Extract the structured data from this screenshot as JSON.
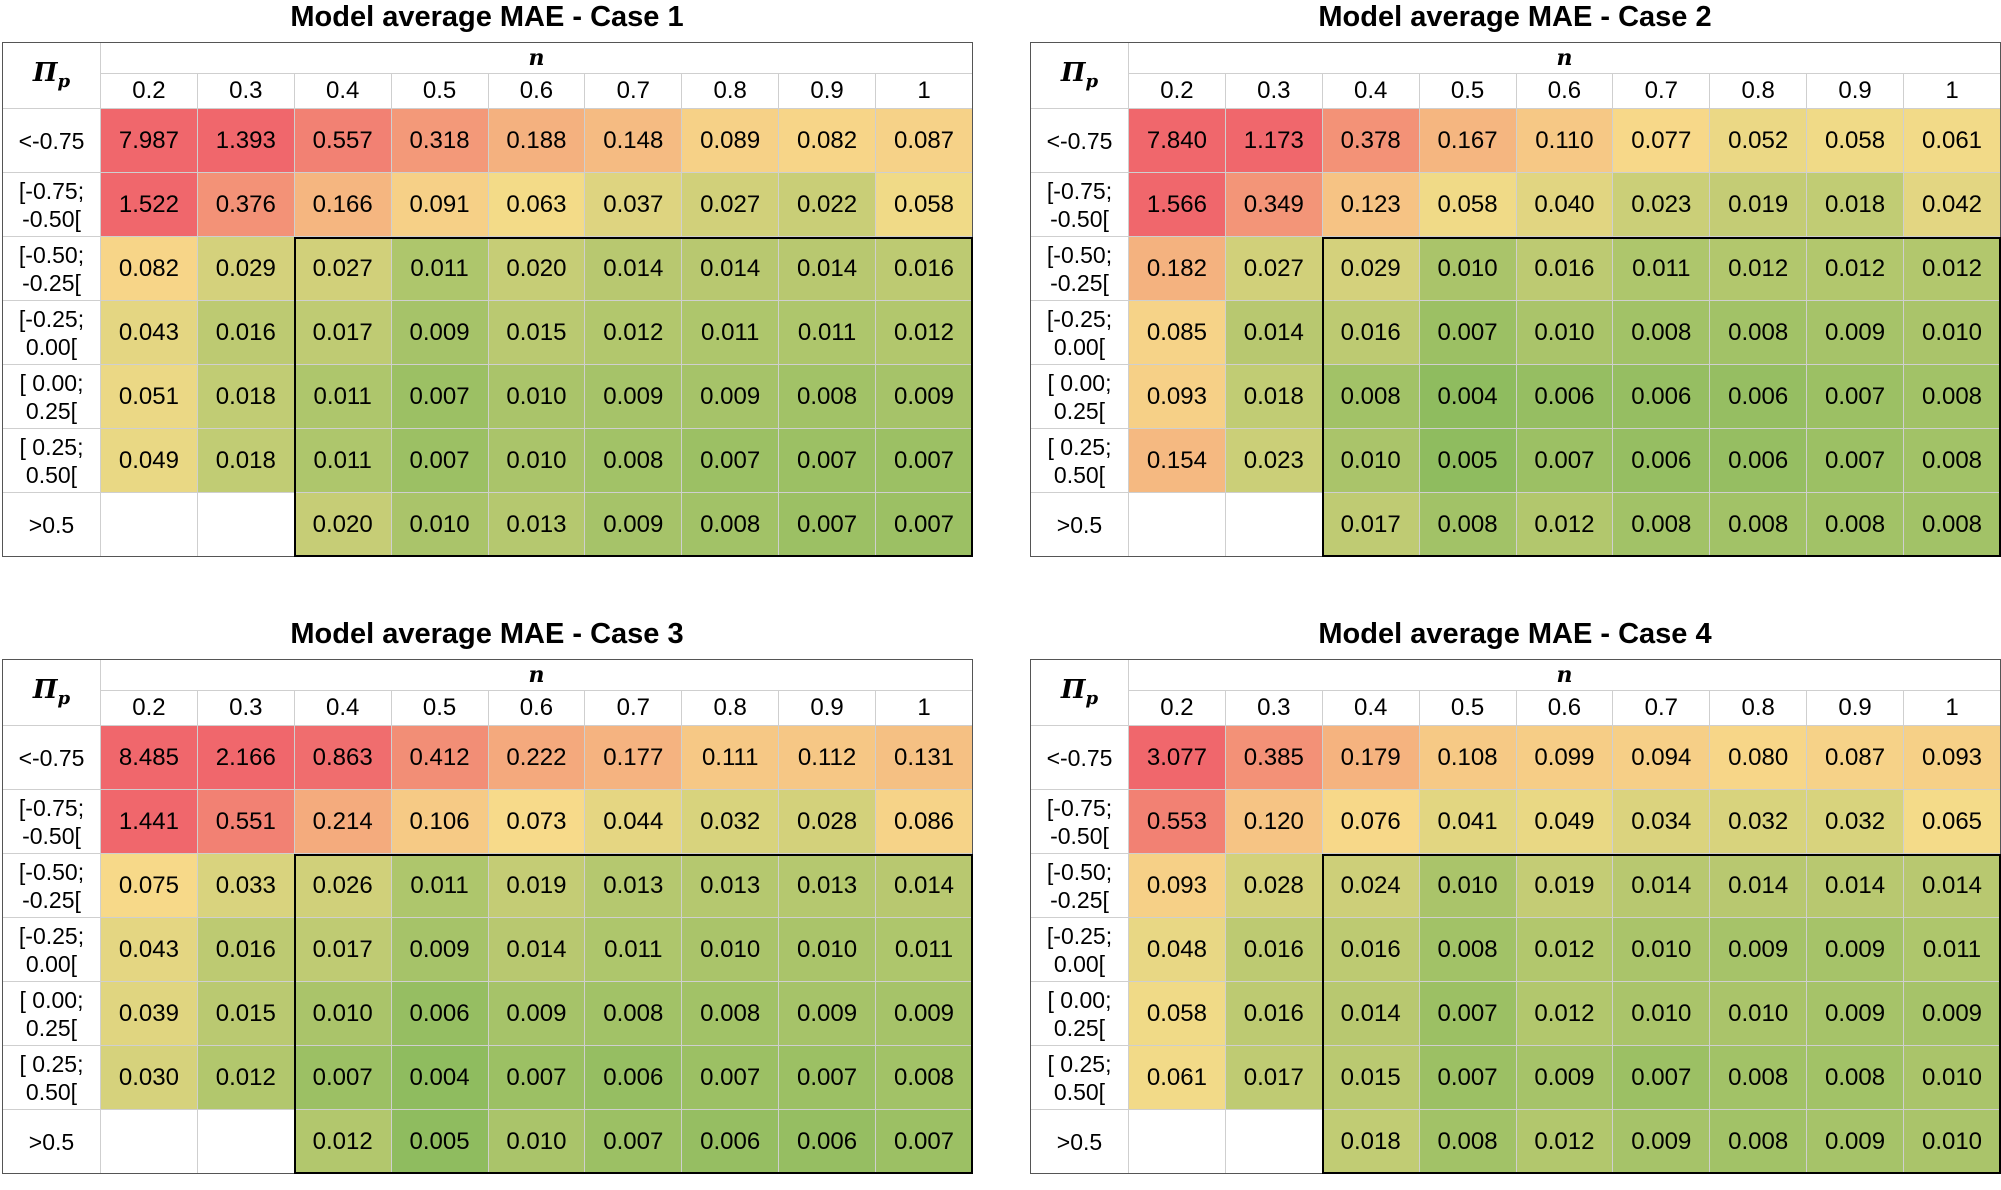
{
  "chart_data": [
    {
      "type": "heatmap",
      "title": "Model average MAE - Case 1",
      "row_header": "Πp",
      "col_header": "n",
      "columns": [
        "0.2",
        "0.3",
        "0.4",
        "0.5",
        "0.6",
        "0.7",
        "0.8",
        "0.9",
        "1"
      ],
      "rows": [
        "<-0.75",
        "[-0.75;\n-0.50[",
        "[-0.50;\n-0.25[",
        "[-0.25;\n0.00[",
        "[ 0.00;\n0.25[",
        "[ 0.25;\n0.50[",
        ">0.5"
      ],
      "values": [
        [
          "7.987",
          "1.393",
          "0.557",
          "0.318",
          "0.188",
          "0.148",
          "0.089",
          "0.082",
          "0.087"
        ],
        [
          "1.522",
          "0.376",
          "0.166",
          "0.091",
          "0.063",
          "0.037",
          "0.027",
          "0.022",
          "0.058"
        ],
        [
          "0.082",
          "0.029",
          "0.027",
          "0.011",
          "0.020",
          "0.014",
          "0.014",
          "0.014",
          "0.016"
        ],
        [
          "0.043",
          "0.016",
          "0.017",
          "0.009",
          "0.015",
          "0.012",
          "0.011",
          "0.011",
          "0.012"
        ],
        [
          "0.051",
          "0.018",
          "0.011",
          "0.007",
          "0.010",
          "0.009",
          "0.009",
          "0.008",
          "0.009"
        ],
        [
          "0.049",
          "0.018",
          "0.011",
          "0.007",
          "0.010",
          "0.008",
          "0.007",
          "0.007",
          "0.007"
        ],
        [
          null,
          null,
          "0.020",
          "0.010",
          "0.013",
          "0.009",
          "0.008",
          "0.007",
          "0.007"
        ]
      ]
    },
    {
      "type": "heatmap",
      "title": "Model average MAE - Case 2",
      "row_header": "Πp",
      "col_header": "n",
      "columns": [
        "0.2",
        "0.3",
        "0.4",
        "0.5",
        "0.6",
        "0.7",
        "0.8",
        "0.9",
        "1"
      ],
      "rows": [
        "<-0.75",
        "[-0.75;\n-0.50[",
        "[-0.50;\n-0.25[",
        "[-0.25;\n0.00[",
        "[ 0.00;\n0.25[",
        "[ 0.25;\n0.50[",
        ">0.5"
      ],
      "values": [
        [
          "7.840",
          "1.173",
          "0.378",
          "0.167",
          "0.110",
          "0.077",
          "0.052",
          "0.058",
          "0.061"
        ],
        [
          "1.566",
          "0.349",
          "0.123",
          "0.058",
          "0.040",
          "0.023",
          "0.019",
          "0.018",
          "0.042"
        ],
        [
          "0.182",
          "0.027",
          "0.029",
          "0.010",
          "0.016",
          "0.011",
          "0.012",
          "0.012",
          "0.012"
        ],
        [
          "0.085",
          "0.014",
          "0.016",
          "0.007",
          "0.010",
          "0.008",
          "0.008",
          "0.009",
          "0.010"
        ],
        [
          "0.093",
          "0.018",
          "0.008",
          "0.004",
          "0.006",
          "0.006",
          "0.006",
          "0.007",
          "0.008"
        ],
        [
          "0.154",
          "0.023",
          "0.010",
          "0.005",
          "0.007",
          "0.006",
          "0.006",
          "0.007",
          "0.008"
        ],
        [
          null,
          null,
          "0.017",
          "0.008",
          "0.012",
          "0.008",
          "0.008",
          "0.008",
          "0.008"
        ]
      ]
    },
    {
      "type": "heatmap",
      "title": "Model average MAE - Case 3",
      "row_header": "Πp",
      "col_header": "n",
      "columns": [
        "0.2",
        "0.3",
        "0.4",
        "0.5",
        "0.6",
        "0.7",
        "0.8",
        "0.9",
        "1"
      ],
      "rows": [
        "<-0.75",
        "[-0.75;\n-0.50[",
        "[-0.50;\n-0.25[",
        "[-0.25;\n0.00[",
        "[ 0.00;\n0.25[",
        "[ 0.25;\n0.50[",
        ">0.5"
      ],
      "values": [
        [
          "8.485",
          "2.166",
          "0.863",
          "0.412",
          "0.222",
          "0.177",
          "0.111",
          "0.112",
          "0.131"
        ],
        [
          "1.441",
          "0.551",
          "0.214",
          "0.106",
          "0.073",
          "0.044",
          "0.032",
          "0.028",
          "0.086"
        ],
        [
          "0.075",
          "0.033",
          "0.026",
          "0.011",
          "0.019",
          "0.013",
          "0.013",
          "0.013",
          "0.014"
        ],
        [
          "0.043",
          "0.016",
          "0.017",
          "0.009",
          "0.014",
          "0.011",
          "0.010",
          "0.010",
          "0.011"
        ],
        [
          "0.039",
          "0.015",
          "0.010",
          "0.006",
          "0.009",
          "0.008",
          "0.008",
          "0.009",
          "0.009"
        ],
        [
          "0.030",
          "0.012",
          "0.007",
          "0.004",
          "0.007",
          "0.006",
          "0.007",
          "0.007",
          "0.008"
        ],
        [
          null,
          null,
          "0.012",
          "0.005",
          "0.010",
          "0.007",
          "0.006",
          "0.006",
          "0.007"
        ]
      ]
    },
    {
      "type": "heatmap",
      "title": "Model average MAE - Case 4",
      "row_header": "Πp",
      "col_header": "n",
      "columns": [
        "0.2",
        "0.3",
        "0.4",
        "0.5",
        "0.6",
        "0.7",
        "0.8",
        "0.9",
        "1"
      ],
      "rows": [
        "<-0.75",
        "[-0.75;\n-0.50[",
        "[-0.50;\n-0.25[",
        "[-0.25;\n0.00[",
        "[ 0.00;\n0.25[",
        "[ 0.25;\n0.50[",
        ">0.5"
      ],
      "values": [
        [
          "3.077",
          "0.385",
          "0.179",
          "0.108",
          "0.099",
          "0.094",
          "0.080",
          "0.087",
          "0.093"
        ],
        [
          "0.553",
          "0.120",
          "0.076",
          "0.041",
          "0.049",
          "0.034",
          "0.032",
          "0.032",
          "0.065"
        ],
        [
          "0.093",
          "0.028",
          "0.024",
          "0.010",
          "0.019",
          "0.014",
          "0.014",
          "0.014",
          "0.014"
        ],
        [
          "0.048",
          "0.016",
          "0.016",
          "0.008",
          "0.012",
          "0.010",
          "0.009",
          "0.009",
          "0.011"
        ],
        [
          "0.058",
          "0.016",
          "0.014",
          "0.007",
          "0.012",
          "0.010",
          "0.010",
          "0.009",
          "0.009"
        ],
        [
          "0.061",
          "0.017",
          "0.015",
          "0.007",
          "0.009",
          "0.007",
          "0.008",
          "0.008",
          "0.010"
        ],
        [
          null,
          null,
          "0.018",
          "0.008",
          "0.012",
          "0.009",
          "0.008",
          "0.009",
          "0.010"
        ]
      ]
    }
  ],
  "colors": {
    "low": "#8fbc5f",
    "mid": "#f7dc8a",
    "high": "#f0676c"
  }
}
